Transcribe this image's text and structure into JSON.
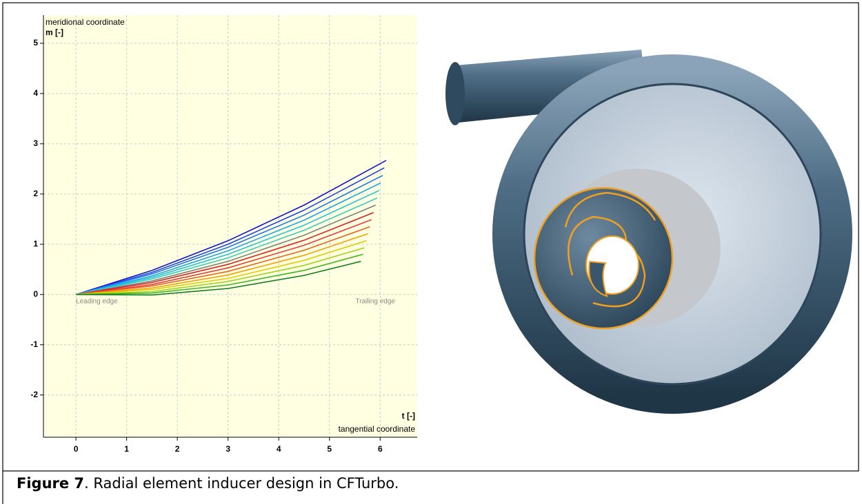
{
  "chart_data": {
    "type": "line",
    "y_label_title": "meridional coordinate",
    "y_label": "m [-]",
    "x_label": "t [-]",
    "x_label_title": "tangential coordinate",
    "annotations": [
      "Leading edge",
      "Trailing edge"
    ],
    "xlim": [
      -0.64,
      6.73
    ],
    "ylim": [
      -2.84,
      5.56
    ],
    "xticks": [
      0,
      1,
      2,
      3,
      4,
      5,
      6
    ],
    "yticks": [
      -2,
      -1,
      0,
      1,
      2,
      3,
      4,
      5
    ],
    "grid": true,
    "series": [
      {
        "color": "#1414c8",
        "x": [
          0,
          1.5,
          3,
          4.5,
          6.12
        ],
        "values": [
          0,
          0.48,
          1.07,
          1.78,
          2.67
        ]
      },
      {
        "color": "#1e46e6",
        "x": [
          0,
          1.5,
          3,
          4.5,
          6.08
        ],
        "values": [
          0,
          0.44,
          1.0,
          1.68,
          2.52
        ]
      },
      {
        "color": "#1e78e6",
        "x": [
          0,
          1.5,
          3,
          4.5,
          6.05
        ],
        "values": [
          0,
          0.41,
          0.94,
          1.58,
          2.37
        ]
      },
      {
        "color": "#1ea5e6",
        "x": [
          0,
          1.5,
          3,
          4.5,
          6.01
        ],
        "values": [
          0,
          0.37,
          0.87,
          1.48,
          2.22
        ]
      },
      {
        "color": "#1ec3dc",
        "x": [
          0,
          1.5,
          3,
          4.5,
          5.98
        ],
        "values": [
          0,
          0.34,
          0.8,
          1.38,
          2.07
        ]
      },
      {
        "color": "#3cc8c3",
        "x": [
          0,
          1.5,
          3,
          4.5,
          5.94
        ],
        "values": [
          0,
          0.31,
          0.73,
          1.28,
          1.92
        ]
      },
      {
        "color": "#808080",
        "x": [
          0,
          1.5,
          3,
          4.5,
          5.91
        ],
        "values": [
          0,
          0.27,
          0.66,
          1.18,
          1.78
        ]
      },
      {
        "color": "#dc1e1e",
        "x": [
          0,
          1.5,
          3,
          4.5,
          5.87
        ],
        "values": [
          0,
          0.24,
          0.6,
          1.08,
          1.63
        ]
      },
      {
        "color": "#e63c3c",
        "x": [
          0,
          1.5,
          3,
          4.5,
          5.83
        ],
        "values": [
          0,
          0.2,
          0.53,
          0.98,
          1.49
        ]
      },
      {
        "color": "#e6641e",
        "x": [
          0,
          1.5,
          3,
          4.5,
          5.8
        ],
        "values": [
          0,
          0.17,
          0.46,
          0.88,
          1.35
        ]
      },
      {
        "color": "#f0a000",
        "x": [
          0,
          1.5,
          3,
          4.5,
          5.76
        ],
        "values": [
          0,
          0.13,
          0.39,
          0.78,
          1.21
        ]
      },
      {
        "color": "#dccd00",
        "x": [
          0,
          1.5,
          3,
          4.5,
          5.73
        ],
        "values": [
          0,
          0.1,
          0.32,
          0.68,
          1.07
        ]
      },
      {
        "color": "#a0d21e",
        "x": [
          0,
          1.5,
          3,
          4.5,
          5.69
        ],
        "values": [
          0,
          0.06,
          0.26,
          0.58,
          0.93
        ]
      },
      {
        "color": "#3cb41e",
        "x": [
          0,
          1.5,
          3,
          4.5,
          5.66
        ],
        "values": [
          0,
          0.03,
          0.19,
          0.48,
          0.8
        ]
      },
      {
        "color": "#0f7d1e",
        "x": [
          0,
          1.5,
          3,
          4.5,
          5.62
        ],
        "values": [
          0,
          -0.01,
          0.12,
          0.38,
          0.66
        ]
      }
    ]
  },
  "caption": {
    "label": "Figure 7",
    "text": ". Radial element inducer design in CFTurbo."
  }
}
